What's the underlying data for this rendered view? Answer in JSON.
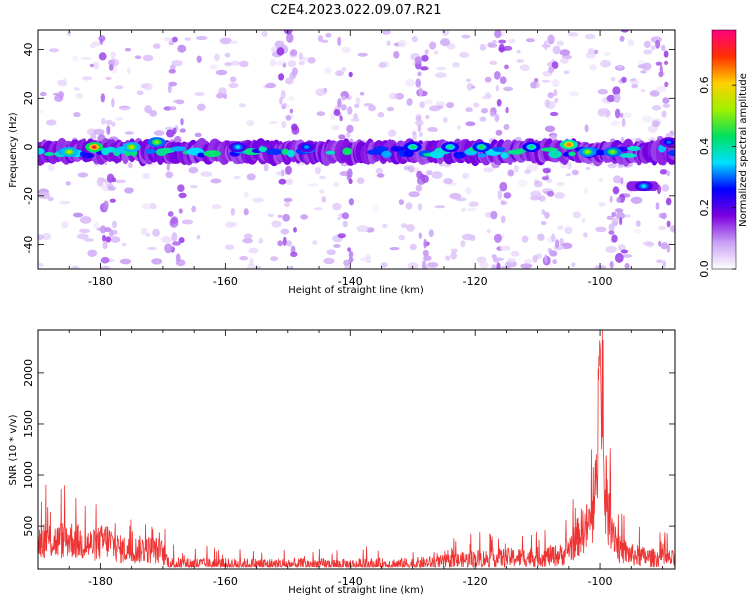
{
  "title": "C2E4.2023.022.09.07.R21",
  "chart_data": [
    {
      "type": "heatmap",
      "xlabel": "Height of straight line (km)",
      "ylabel": "Frequency (Hz)",
      "xlim": [
        -190,
        -88
      ],
      "ylim": [
        -50,
        48
      ],
      "xticks": [
        -180,
        -160,
        -140,
        -120,
        -100
      ],
      "yticks": [
        -40,
        -20,
        0,
        20,
        40
      ],
      "colorbar": {
        "label": "Normalized spectral amplitude",
        "range": [
          0.0,
          0.78
        ],
        "ticks": [
          0.0,
          0.2,
          0.4,
          0.6
        ],
        "colormap": [
          "#ffffff",
          "#c9a0f5",
          "#7b00e0",
          "#0000ff",
          "#00e0ff",
          "#00e060",
          "#a0f000",
          "#ffd000",
          "#ff3000",
          "#ff0080"
        ]
      },
      "band": {
        "center_hz": -2,
        "halfwidth_hz": 5
      },
      "secondary_band": {
        "x_range": [
          -95,
          -91
        ],
        "center_hz": -16
      },
      "hotspots": [
        {
          "x": -181,
          "y": 0,
          "value": 0.72
        },
        {
          "x": -185,
          "y": -2,
          "value": 0.55
        },
        {
          "x": -175,
          "y": 0,
          "value": 0.55
        },
        {
          "x": -171,
          "y": 2,
          "value": 0.5
        },
        {
          "x": -158,
          "y": 0,
          "value": 0.35
        },
        {
          "x": -147,
          "y": 0,
          "value": 0.32
        },
        {
          "x": -130,
          "y": 0,
          "value": 0.42
        },
        {
          "x": -124,
          "y": 0,
          "value": 0.4
        },
        {
          "x": -119,
          "y": 0,
          "value": 0.45
        },
        {
          "x": -111,
          "y": 0,
          "value": 0.42
        },
        {
          "x": -105,
          "y": 1,
          "value": 0.65
        },
        {
          "x": -102,
          "y": -2,
          "value": 0.52
        },
        {
          "x": -98,
          "y": -2,
          "value": 0.5
        },
        {
          "x": -93,
          "y": -16,
          "value": 0.35
        },
        {
          "x": -89,
          "y": 2,
          "value": 0.3
        }
      ]
    },
    {
      "type": "line",
      "xlabel": "Height of straight line (km)",
      "ylabel": "SNR (10 * v/v)",
      "xlim": [
        -190,
        -88
      ],
      "ylim": [
        80,
        2420
      ],
      "xticks": [
        -180,
        -160,
        -140,
        -120,
        -100
      ],
      "yticks": [
        500,
        1000,
        1500,
        2000
      ],
      "color": "#ee3333",
      "envelope": [
        {
          "x": -190,
          "y": 450
        },
        {
          "x": -189,
          "y": 520
        },
        {
          "x": -187,
          "y": 480
        },
        {
          "x": -185,
          "y": 520
        },
        {
          "x": -183,
          "y": 460
        },
        {
          "x": -181,
          "y": 430
        },
        {
          "x": -179,
          "y": 500
        },
        {
          "x": -177,
          "y": 380
        },
        {
          "x": -175,
          "y": 360
        },
        {
          "x": -173,
          "y": 380
        },
        {
          "x": -171,
          "y": 360
        },
        {
          "x": -170,
          "y": 330
        },
        {
          "x": -169,
          "y": 180
        },
        {
          "x": -160,
          "y": 170
        },
        {
          "x": -150,
          "y": 170
        },
        {
          "x": -140,
          "y": 165
        },
        {
          "x": -130,
          "y": 175
        },
        {
          "x": -125,
          "y": 200
        },
        {
          "x": -120,
          "y": 245
        },
        {
          "x": -115,
          "y": 260
        },
        {
          "x": -110,
          "y": 270
        },
        {
          "x": -106,
          "y": 300
        },
        {
          "x": -104,
          "y": 480
        },
        {
          "x": -103,
          "y": 620
        },
        {
          "x": -102,
          "y": 680
        },
        {
          "x": -101,
          "y": 820
        },
        {
          "x": -100.6,
          "y": 1200
        },
        {
          "x": -100.3,
          "y": 2050
        },
        {
          "x": -100,
          "y": 2420
        },
        {
          "x": -99.7,
          "y": 1600
        },
        {
          "x": -99,
          "y": 900
        },
        {
          "x": -98,
          "y": 700
        },
        {
          "x": -97,
          "y": 380
        },
        {
          "x": -95,
          "y": 300
        },
        {
          "x": -92,
          "y": 260
        },
        {
          "x": -90,
          "y": 250
        },
        {
          "x": -88,
          "y": 240
        }
      ]
    }
  ]
}
